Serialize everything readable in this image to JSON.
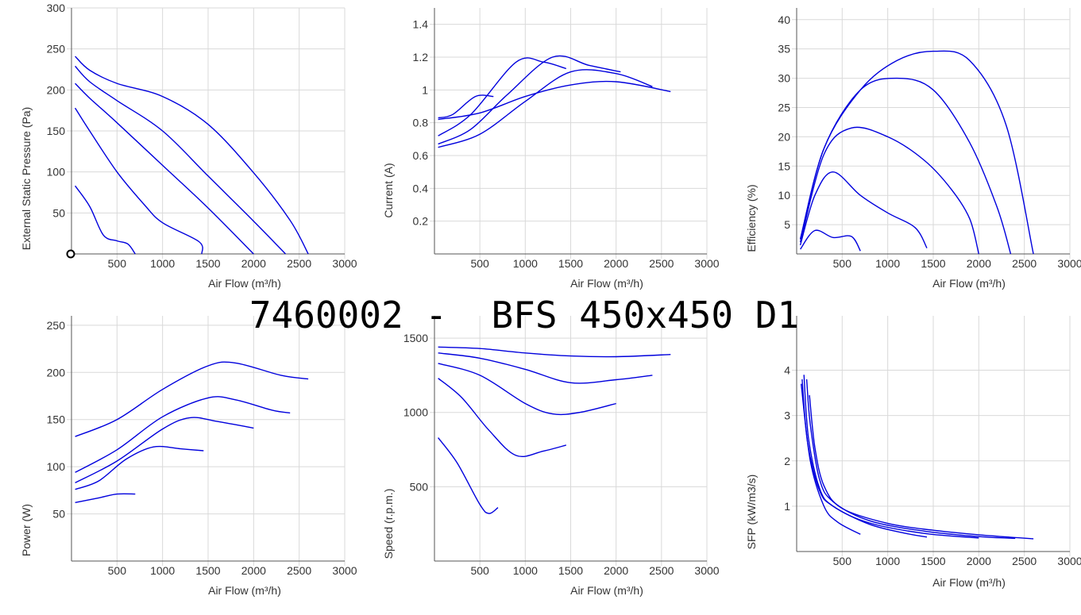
{
  "page_title": "7460002 -  BFS 450x450 D1",
  "colors": {
    "curve": "#0000dd",
    "grid": "#d9d9d9",
    "axis": "#555555",
    "text": "#333333"
  },
  "chart_data": [
    {
      "id": "pressure",
      "type": "line",
      "xlabel": "Air Flow (m³/h)",
      "ylabel": "External Static Pressure (Pa)",
      "xlim": [
        0,
        3000
      ],
      "ylim": [
        0,
        300
      ],
      "xticks": [
        500,
        1000,
        1500,
        2000,
        2500,
        3000
      ],
      "xtick_labels": [
        "500",
        "1000",
        "1500",
        "2000",
        "2500",
        "3000"
      ],
      "yticks": [
        50,
        100,
        150,
        200,
        250,
        300
      ],
      "ytick_labels": [
        "50",
        "100",
        "150",
        "200",
        "250",
        "300"
      ],
      "has_origin_marker": true,
      "series": [
        {
          "values": [
            [
              40,
              241
            ],
            [
              200,
              224
            ],
            [
              500,
              208
            ],
            [
              1000,
              192
            ],
            [
              1500,
              158
            ],
            [
              2000,
              99
            ],
            [
              2400,
              41
            ],
            [
              2600,
              0
            ]
          ]
        },
        {
          "values": [
            [
              40,
              229
            ],
            [
              200,
              210
            ],
            [
              500,
              187
            ],
            [
              1000,
              150
            ],
            [
              1500,
              95
            ],
            [
              2000,
              40
            ],
            [
              2350,
              0
            ]
          ]
        },
        {
          "values": [
            [
              40,
              208
            ],
            [
              200,
              190
            ],
            [
              500,
              160
            ],
            [
              1000,
              108
            ],
            [
              1500,
              56
            ],
            [
              2000,
              0
            ]
          ]
        },
        {
          "values": [
            [
              40,
              178
            ],
            [
              200,
              150
            ],
            [
              500,
              100
            ],
            [
              800,
              60
            ],
            [
              1000,
              38
            ],
            [
              1400,
              15
            ],
            [
              1430,
              0
            ]
          ]
        },
        {
          "values": [
            [
              40,
              83
            ],
            [
              200,
              58
            ],
            [
              350,
              23
            ],
            [
              500,
              16
            ],
            [
              620,
              12
            ],
            [
              700,
              0
            ]
          ]
        }
      ]
    },
    {
      "id": "current",
      "type": "line",
      "xlabel": "Air Flow (m³/h)",
      "ylabel": "Current (A)",
      "xlim": [
        0,
        3000
      ],
      "ylim": [
        0,
        1.5
      ],
      "xticks": [
        500,
        1000,
        1500,
        2000,
        2500,
        3000
      ],
      "xtick_labels": [
        "500",
        "1000",
        "1500",
        "2000",
        "2500",
        "3000"
      ],
      "yticks": [
        0.2,
        0.4,
        0.6,
        0.8,
        1.0,
        1.2,
        1.4
      ],
      "ytick_labels": [
        "0.2",
        "0.4",
        "0.6",
        "0.8",
        "1",
        "1.2",
        "1.4"
      ],
      "series": [
        {
          "values": [
            [
              40,
              0.82
            ],
            [
              500,
              0.86
            ],
            [
              1000,
              0.96
            ],
            [
              1500,
              1.03
            ],
            [
              2000,
              1.05
            ],
            [
              2600,
              0.99
            ]
          ]
        },
        {
          "values": [
            [
              40,
              0.65
            ],
            [
              500,
              0.73
            ],
            [
              1000,
              0.93
            ],
            [
              1500,
              1.11
            ],
            [
              2000,
              1.1
            ],
            [
              2400,
              1.02
            ]
          ]
        },
        {
          "values": [
            [
              40,
              0.67
            ],
            [
              400,
              0.76
            ],
            [
              800,
              0.97
            ],
            [
              1300,
              1.2
            ],
            [
              1700,
              1.15
            ],
            [
              2050,
              1.11
            ]
          ]
        },
        {
          "values": [
            [
              40,
              0.72
            ],
            [
              400,
              0.85
            ],
            [
              900,
              1.17
            ],
            [
              1200,
              1.17
            ],
            [
              1450,
              1.13
            ]
          ]
        },
        {
          "values": [
            [
              40,
              0.83
            ],
            [
              200,
              0.85
            ],
            [
              450,
              0.96
            ],
            [
              650,
              0.96
            ]
          ]
        }
      ]
    },
    {
      "id": "efficiency",
      "type": "line",
      "xlabel": "Air Flow (m³/h)",
      "ylabel": "Efficiency (%)",
      "xlim": [
        0,
        3000
      ],
      "ylim": [
        0,
        42
      ],
      "xticks": [
        500,
        1000,
        1500,
        2000,
        2500,
        3000
      ],
      "xtick_labels": [
        "500",
        "1000",
        "1500",
        "2000",
        "2500",
        "3000"
      ],
      "yticks": [
        5,
        10,
        15,
        20,
        25,
        30,
        35,
        40
      ],
      "ytick_labels": [
        "5",
        "10",
        "15",
        "20",
        "25",
        "30",
        "35",
        "40"
      ],
      "series": [
        {
          "values": [
            [
              40,
              2.5
            ],
            [
              300,
              18
            ],
            [
              700,
              28
            ],
            [
              1100,
              33
            ],
            [
              1500,
              34.6
            ],
            [
              1900,
              33
            ],
            [
              2300,
              22
            ],
            [
              2600,
              0
            ]
          ]
        },
        {
          "values": [
            [
              40,
              2.5
            ],
            [
              300,
              18
            ],
            [
              700,
              28
            ],
            [
              1100,
              30
            ],
            [
              1500,
              28
            ],
            [
              1900,
              19
            ],
            [
              2200,
              8
            ],
            [
              2350,
              0
            ]
          ]
        },
        {
          "values": [
            [
              40,
              2
            ],
            [
              300,
              17
            ],
            [
              600,
              21.5
            ],
            [
              1000,
              20
            ],
            [
              1400,
              16
            ],
            [
              1700,
              11
            ],
            [
              1900,
              6
            ],
            [
              2000,
              0
            ]
          ]
        },
        {
          "values": [
            [
              40,
              1.5
            ],
            [
              200,
              10
            ],
            [
              400,
              14
            ],
            [
              700,
              10
            ],
            [
              1000,
              7
            ],
            [
              1300,
              4.5
            ],
            [
              1430,
              1
            ]
          ]
        },
        {
          "values": [
            [
              40,
              0.8
            ],
            [
              200,
              4
            ],
            [
              400,
              2.8
            ],
            [
              600,
              3
            ],
            [
              700,
              0.5
            ]
          ]
        }
      ]
    },
    {
      "id": "power",
      "type": "line",
      "xlabel": "Air Flow (m³/h)",
      "ylabel": "Power (W)",
      "xlim": [
        0,
        3000
      ],
      "ylim": [
        0,
        260
      ],
      "xticks": [
        500,
        1000,
        1500,
        2000,
        2500,
        3000
      ],
      "xtick_labels": [
        "500",
        "1000",
        "1500",
        "2000",
        "2500",
        "3000"
      ],
      "yticks": [
        50,
        100,
        150,
        200,
        250
      ],
      "ytick_labels": [
        "50",
        "100",
        "150",
        "200",
        "250"
      ],
      "series": [
        {
          "values": [
            [
              40,
              132
            ],
            [
              500,
              150
            ],
            [
              1000,
              182
            ],
            [
              1500,
              207
            ],
            [
              1800,
              210
            ],
            [
              2300,
              197
            ],
            [
              2600,
              193
            ]
          ]
        },
        {
          "values": [
            [
              40,
              94
            ],
            [
              500,
              118
            ],
            [
              1000,
              153
            ],
            [
              1500,
              173
            ],
            [
              1800,
              171
            ],
            [
              2200,
              160
            ],
            [
              2400,
              157
            ]
          ]
        },
        {
          "values": [
            [
              40,
              83
            ],
            [
              500,
              106
            ],
            [
              1000,
              140
            ],
            [
              1300,
              152
            ],
            [
              1600,
              148
            ],
            [
              2000,
              141
            ]
          ]
        },
        {
          "values": [
            [
              40,
              76
            ],
            [
              300,
              85
            ],
            [
              600,
              108
            ],
            [
              900,
              121
            ],
            [
              1200,
              119
            ],
            [
              1450,
              117
            ]
          ]
        },
        {
          "values": [
            [
              40,
              62
            ],
            [
              300,
              67
            ],
            [
              500,
              71
            ],
            [
              700,
              71
            ]
          ]
        }
      ]
    },
    {
      "id": "speed",
      "type": "line",
      "xlabel": "Air Flow (m³/h)",
      "ylabel": "Speed (r.p.m.)",
      "xlim": [
        0,
        3000
      ],
      "ylim": [
        0,
        1650
      ],
      "xticks": [
        500,
        1000,
        1500,
        2000,
        2500,
        3000
      ],
      "xtick_labels": [
        "500",
        "1000",
        "1500",
        "2000",
        "2500",
        "3000"
      ],
      "yticks": [
        500,
        1000,
        1500
      ],
      "ytick_labels": [
        "500",
        "1000",
        "1500"
      ],
      "series": [
        {
          "values": [
            [
              40,
              1440
            ],
            [
              500,
              1430
            ],
            [
              1000,
              1400
            ],
            [
              1500,
              1380
            ],
            [
              2000,
              1375
            ],
            [
              2600,
              1390
            ]
          ]
        },
        {
          "values": [
            [
              40,
              1400
            ],
            [
              500,
              1365
            ],
            [
              1000,
              1290
            ],
            [
              1500,
              1200
            ],
            [
              2000,
              1220
            ],
            [
              2400,
              1250
            ]
          ]
        },
        {
          "values": [
            [
              40,
              1330
            ],
            [
              500,
              1250
            ],
            [
              1000,
              1060
            ],
            [
              1300,
              990
            ],
            [
              1600,
              1000
            ],
            [
              2000,
              1060
            ]
          ]
        },
        {
          "values": [
            [
              40,
              1230
            ],
            [
              300,
              1100
            ],
            [
              600,
              880
            ],
            [
              900,
              710
            ],
            [
              1200,
              740
            ],
            [
              1450,
              780
            ]
          ]
        },
        {
          "values": [
            [
              40,
              830
            ],
            [
              250,
              660
            ],
            [
              500,
              380
            ],
            [
              600,
              320
            ],
            [
              700,
              360
            ]
          ]
        }
      ]
    },
    {
      "id": "sfp",
      "type": "line",
      "xlabel": "Air Flow (m³/h)",
      "ylabel": "SFP (kW/m3/s)",
      "xlim": [
        0,
        3000
      ],
      "ylim": [
        0,
        5.2
      ],
      "xticks": [
        500,
        1000,
        1500,
        2000,
        2500,
        3000
      ],
      "xtick_labels": [
        "500",
        "1000",
        "1500",
        "2000",
        "2500",
        "3000"
      ],
      "yticks": [
        1,
        2,
        3,
        4
      ],
      "ytick_labels": [
        "1",
        "2",
        "3",
        "4"
      ],
      "series": [
        {
          "values": [
            [
              140,
              3.45
            ],
            [
              200,
              2.3
            ],
            [
              300,
              1.45
            ],
            [
              500,
              0.95
            ],
            [
              1000,
              0.62
            ],
            [
              1500,
              0.47
            ],
            [
              2000,
              0.37
            ],
            [
              2600,
              0.28
            ]
          ]
        },
        {
          "values": [
            [
              110,
              3.8
            ],
            [
              150,
              2.8
            ],
            [
              250,
              1.6
            ],
            [
              400,
              1.1
            ],
            [
              800,
              0.68
            ],
            [
              1400,
              0.45
            ],
            [
              2000,
              0.33
            ],
            [
              2400,
              0.29
            ]
          ]
        },
        {
          "values": [
            [
              80,
              3.9
            ],
            [
              130,
              2.5
            ],
            [
              250,
              1.4
            ],
            [
              400,
              1.0
            ],
            [
              800,
              0.63
            ],
            [
              1400,
              0.4
            ],
            [
              2000,
              0.3
            ]
          ]
        },
        {
          "values": [
            [
              60,
              3.8
            ],
            [
              120,
              2.4
            ],
            [
              250,
              1.35
            ],
            [
              400,
              1.0
            ],
            [
              800,
              0.6
            ],
            [
              1200,
              0.4
            ],
            [
              1430,
              0.32
            ]
          ]
        },
        {
          "values": [
            [
              50,
              3.7
            ],
            [
              150,
              2.0
            ],
            [
              300,
              1.0
            ],
            [
              450,
              0.65
            ],
            [
              700,
              0.38
            ]
          ]
        }
      ]
    }
  ]
}
